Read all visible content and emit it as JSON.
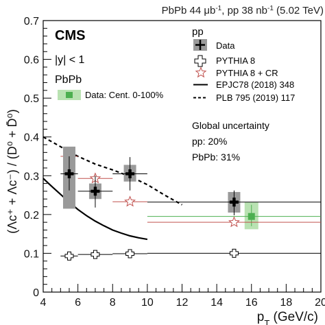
{
  "header": {
    "title_parts": [
      "PbPb 44 μb",
      "-1",
      ", pp 38 nb",
      "-1",
      " (5.02 TeV)"
    ]
  },
  "labels": {
    "experiment": "CMS",
    "rapidity": "|y| < 1",
    "pbpb_heading": "PbPb",
    "pp_heading": "pp",
    "global_unc_title": "Global uncertainty",
    "global_unc_pp": "pp: 20%",
    "global_unc_pbpb": "PbPb: 31%",
    "xlabel_main": "p",
    "xlabel_sub": "T",
    "xlabel_unit": " (GeV/c)",
    "ylabel": "(Λc⁺ + Λc⁻) / (D⁰ + D̄⁰)"
  },
  "chart_data": {
    "type": "scatter",
    "xlim": [
      4,
      20
    ],
    "ylim": [
      0,
      0.7
    ],
    "x_ticks": [
      "4",
      "6",
      "8",
      "10",
      "12",
      "14",
      "16",
      "18",
      "20"
    ],
    "y_ticks": [
      "0",
      "0.1",
      "0.2",
      "0.3",
      "0.4",
      "0.5",
      "0.6",
      "0.7"
    ],
    "grid": false,
    "legend_position": "top-right",
    "legend": [
      {
        "label": "Data",
        "marker": "black-cross-gray-box"
      },
      {
        "label": "PYTHIA 8",
        "marker": "open-cross"
      },
      {
        "label": "PYTHIA 8 + CR",
        "marker": "open-star"
      },
      {
        "label": "EPJC78 (2018) 348",
        "marker": "solid-line"
      },
      {
        "label": "PLB 795 (2019) 117",
        "marker": "dashed-line"
      }
    ],
    "pbpb_legend": {
      "label": "Data: Cent. 0-100%",
      "marker": "green-square-box"
    },
    "series": [
      {
        "name": "Data",
        "color": "#000000",
        "points": [
          {
            "x": 5.5,
            "y": 0.305,
            "xlo": 5,
            "xhi": 6,
            "ylo": 0.262,
            "yhi": 0.35,
            "syslo": 0.215,
            "syshi": 0.375
          },
          {
            "x": 7.0,
            "y": 0.26,
            "xlo": 6,
            "xhi": 8,
            "ylo": 0.218,
            "yhi": 0.3,
            "syslo": 0.24,
            "syshi": 0.28
          },
          {
            "x": 9.0,
            "y": 0.305,
            "xlo": 8,
            "xhi": 10,
            "ylo": 0.262,
            "yhi": 0.348,
            "syslo": 0.285,
            "syshi": 0.328
          },
          {
            "x": 15.0,
            "y": 0.232,
            "xlo": 10,
            "xhi": 20,
            "ylo": 0.198,
            "yhi": 0.262,
            "syslo": 0.205,
            "syshi": 0.258
          }
        ]
      },
      {
        "name": "PYTHIA 8",
        "color": "#000000",
        "points": [
          {
            "x": 5.5,
            "y": 0.093,
            "xlo": 5,
            "xhi": 6
          },
          {
            "x": 7.0,
            "y": 0.097,
            "xlo": 6,
            "xhi": 8
          },
          {
            "x": 9.0,
            "y": 0.099,
            "xlo": 8,
            "xhi": 10
          },
          {
            "x": 15.0,
            "y": 0.1,
            "xlo": 10,
            "xhi": 20
          }
        ]
      },
      {
        "name": "PYTHIA 8 + CR",
        "color": "#c0504d",
        "points": [
          {
            "x": 5.5,
            "y": 0.35,
            "xlo": 5,
            "xhi": 6
          },
          {
            "x": 7.0,
            "y": 0.293,
            "xlo": 6,
            "xhi": 8
          },
          {
            "x": 9.0,
            "y": 0.233,
            "xlo": 8,
            "xhi": 10
          },
          {
            "x": 15.0,
            "y": 0.18,
            "xlo": 10,
            "xhi": 20
          }
        ]
      },
      {
        "name": "Data: Cent. 0-100%",
        "color": "#4caf50",
        "points": [
          {
            "x": 16.0,
            "y": 0.195,
            "xlo": 10,
            "xhi": 20,
            "ylo": 0.17,
            "yhi": 0.225,
            "syslo": 0.162,
            "syshi": 0.232
          }
        ]
      },
      {
        "name": "EPJC78 (2018) 348",
        "style": "solid",
        "color": "#000000",
        "x": [
          4,
          4.5,
          5,
          5.5,
          6,
          6.5,
          7,
          7.5,
          8,
          8.5,
          9,
          9.5,
          10
        ],
        "y": [
          0.293,
          0.272,
          0.252,
          0.232,
          0.213,
          0.197,
          0.183,
          0.171,
          0.16,
          0.152,
          0.145,
          0.14,
          0.136
        ]
      },
      {
        "name": "PLB 795 (2019) 117",
        "style": "dashed",
        "color": "#000000",
        "x": [
          4,
          5,
          6,
          7,
          8,
          9,
          10,
          11,
          12
        ],
        "y": [
          0.4,
          0.375,
          0.35,
          0.33,
          0.315,
          0.298,
          0.277,
          0.25,
          0.225
        ]
      }
    ]
  }
}
